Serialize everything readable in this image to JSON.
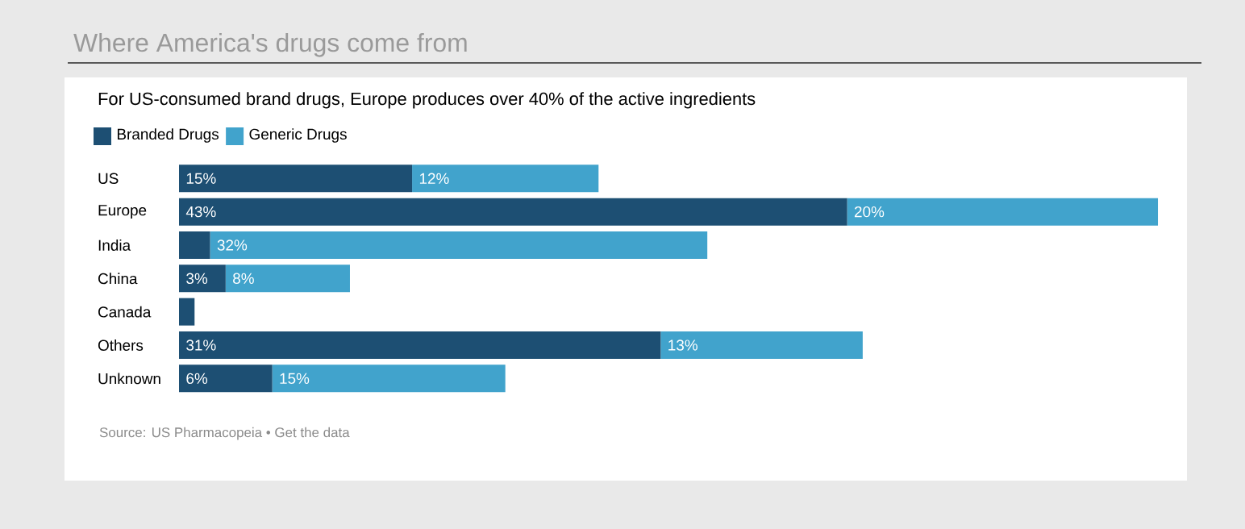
{
  "chart_data": {
    "type": "bar",
    "orientation": "horizontal",
    "stacked": true,
    "title": "Where America's drugs come from",
    "subtitle": "For US-consumed brand drugs, Europe produces over 40% of the active ingredients",
    "categories": [
      "US",
      "Europe",
      "India",
      "China",
      "Canada",
      "Others",
      "Unknown"
    ],
    "series": [
      {
        "name": "Branded Drugs",
        "color": "#1d4f73",
        "values": [
          15,
          43,
          2,
          3,
          1,
          31,
          6
        ],
        "value_labels": [
          "15%",
          "43%",
          null,
          "3%",
          null,
          "31%",
          "6%"
        ]
      },
      {
        "name": "Generic Drugs",
        "color": "#41a3cc",
        "values": [
          12,
          20,
          32,
          8,
          null,
          13,
          15
        ],
        "value_labels": [
          "12%",
          "20%",
          "32%",
          "8%",
          null,
          "13%",
          "15%"
        ]
      }
    ],
    "legend": "top left",
    "annotations": [
      "Source: US Pharmacopeia • Get the data"
    ]
  }
}
